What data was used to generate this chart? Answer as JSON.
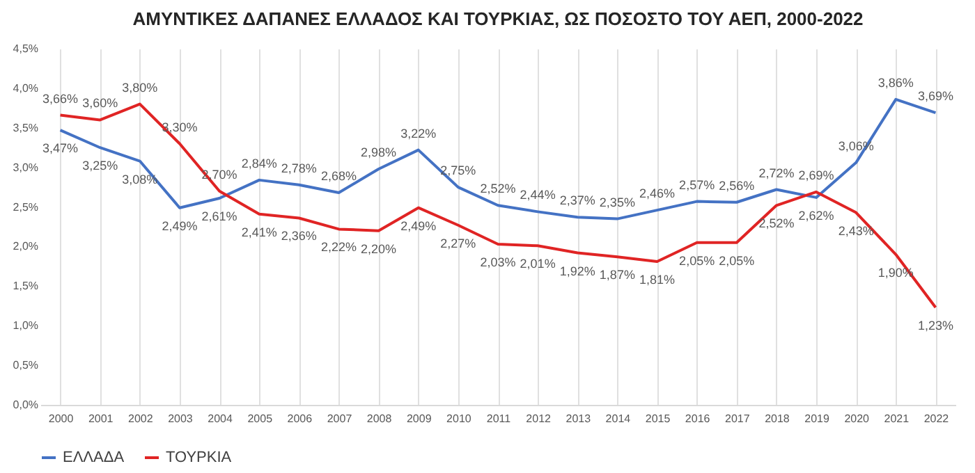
{
  "chart_data": {
    "type": "line",
    "title": "ΑΜΥΝΤΙΚΕΣ ΔΑΠΑΝΕΣ ΕΛΛΑΔΟΣ ΚΑΙ ΤΟΥΡΚΙΑΣ, ΩΣ ΠΟΣΟΣΤΟ ΤΟΥ ΑΕΠ, 2000-2022",
    "categories": [
      "2000",
      "2001",
      "2002",
      "2003",
      "2004",
      "2005",
      "2006",
      "2007",
      "2008",
      "2009",
      "2010",
      "2011",
      "2012",
      "2013",
      "2014",
      "2015",
      "2016",
      "2017",
      "2018",
      "2019",
      "2020",
      "2021",
      "2022"
    ],
    "series": [
      {
        "name": "ΕΛΛΑΔΑ",
        "color": "#4472c4",
        "values": [
          3.47,
          3.25,
          3.08,
          2.49,
          2.61,
          2.84,
          2.78,
          2.68,
          2.98,
          3.22,
          2.75,
          2.52,
          2.44,
          2.37,
          2.35,
          2.46,
          2.57,
          2.56,
          2.72,
          2.62,
          3.06,
          3.86,
          3.69
        ],
        "value_labels": [
          "3,47%",
          "3,25%",
          "3,08%",
          "2,49%",
          "2,61%",
          "2,84%",
          "2,78%",
          "2,68%",
          "2,98%",
          "3,22%",
          "2,75%",
          "2,52%",
          "2,44%",
          "2,37%",
          "2,35%",
          "2,46%",
          "2,57%",
          "2,56%",
          "2,72%",
          "2,62%",
          "3,06%",
          "3,86%",
          "3,69%"
        ]
      },
      {
        "name": "ΤΟΥΡΚΙΑ",
        "color": "#e02424",
        "values": [
          3.66,
          3.6,
          3.8,
          3.3,
          2.7,
          2.41,
          2.36,
          2.22,
          2.2,
          2.49,
          2.27,
          2.03,
          2.01,
          1.92,
          1.87,
          1.81,
          2.05,
          2.05,
          2.52,
          2.69,
          2.43,
          1.9,
          1.23
        ],
        "value_labels": [
          "3,66%",
          "3,60%",
          "3,80%",
          "3,30%",
          "2,70%",
          "2,41%",
          "2,36%",
          "2,22%",
          "2,20%",
          "2,49%",
          "2,27%",
          "2,03%",
          "2,01%",
          "1,92%",
          "1,87%",
          "1,81%",
          "2,05%",
          "2,05%",
          "2,52%",
          "2,69%",
          "2,43%",
          "1,90%",
          "1,23%"
        ]
      }
    ],
    "ylim": [
      0,
      4.5
    ],
    "yticks": [
      {
        "value": 0,
        "label": "0,0%"
      },
      {
        "value": 0.5,
        "label": "0,5%"
      },
      {
        "value": 1,
        "label": "1,0%"
      },
      {
        "value": 1.5,
        "label": "1,5%"
      },
      {
        "value": 2,
        "label": "2,0%"
      },
      {
        "value": 2.5,
        "label": "2,5%"
      },
      {
        "value": 3,
        "label": "3,0%"
      },
      {
        "value": 3.5,
        "label": "3,5%"
      },
      {
        "value": 4,
        "label": "4,0%"
      },
      {
        "value": 4.5,
        "label": "4,5%"
      }
    ],
    "grid": "x",
    "legend": "bottom",
    "marker": "none",
    "line_style": "solid"
  }
}
